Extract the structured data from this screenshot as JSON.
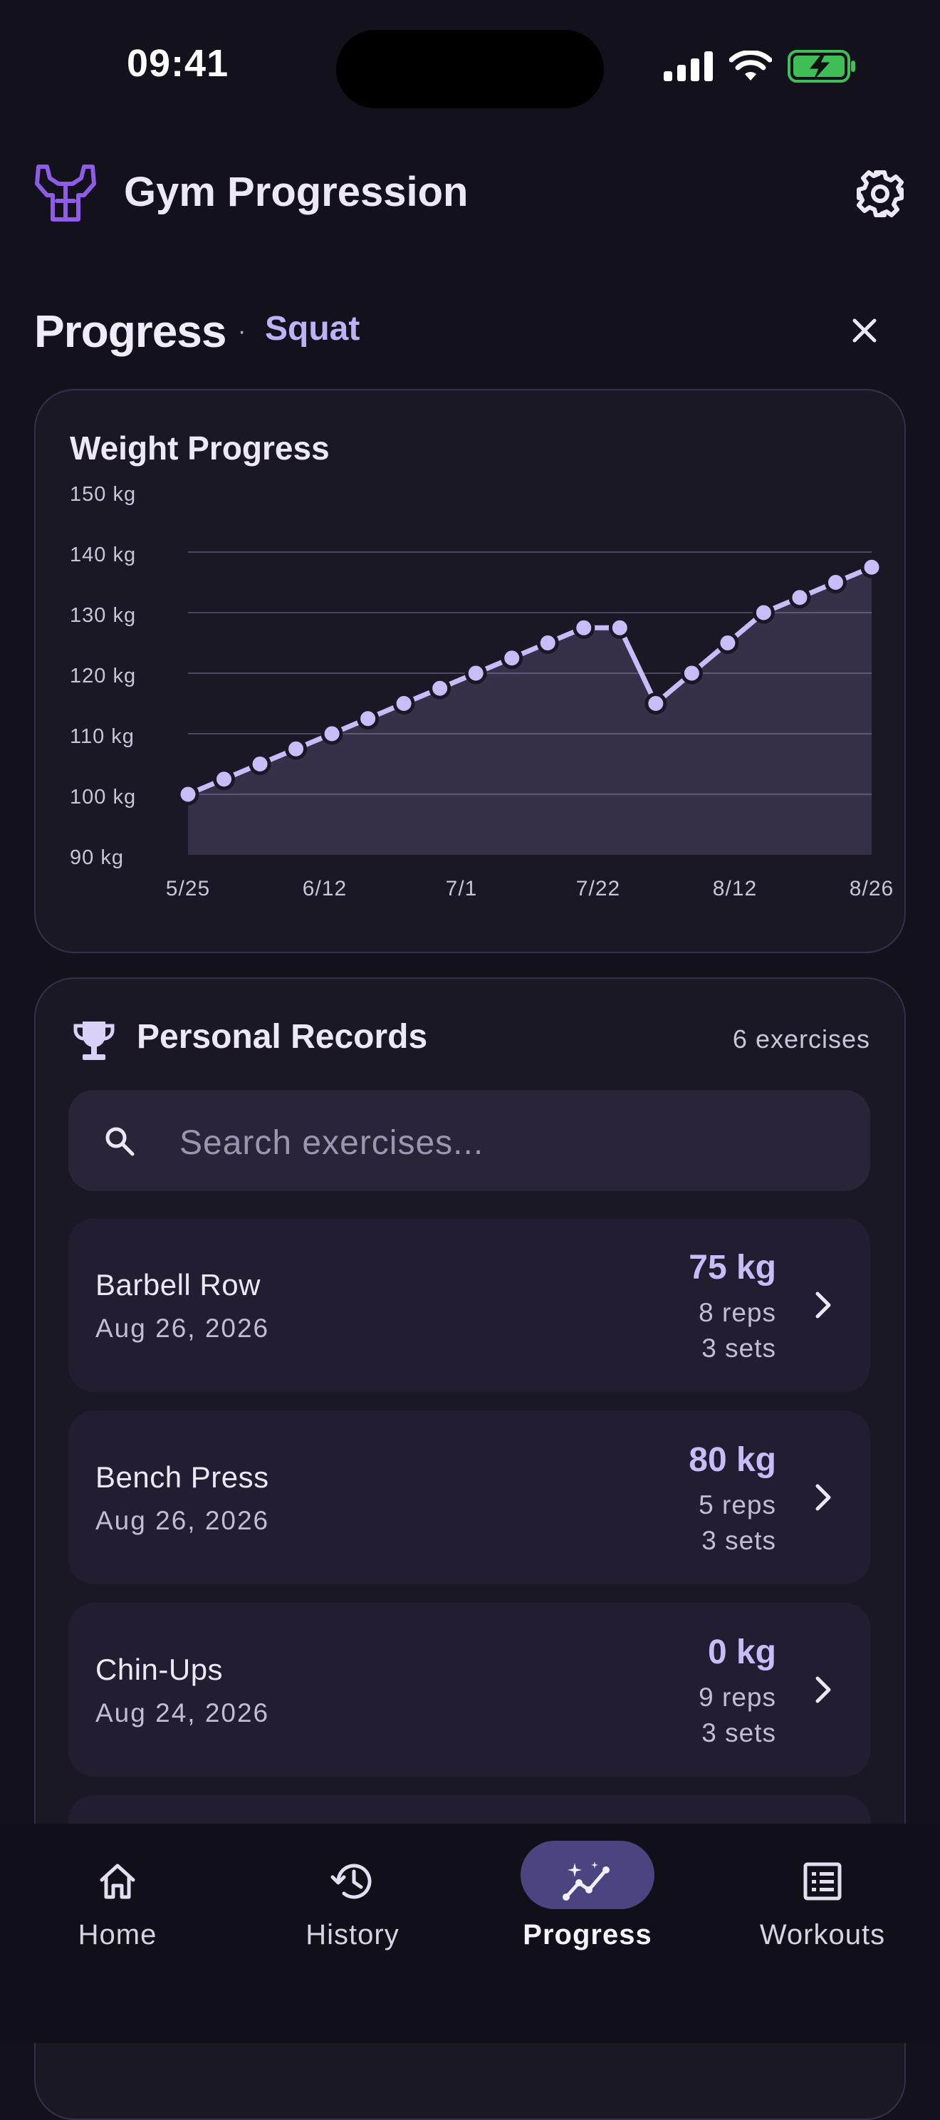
{
  "status_bar": {
    "time": "09:41"
  },
  "app_bar": {
    "title": "Gym Progression",
    "logo_icon": "flexing-arms-icon",
    "settings_icon": "gear-icon"
  },
  "section": {
    "title": "Progress",
    "separator": "·",
    "exercise": "Squat",
    "close_icon": "close-icon"
  },
  "chart_data": {
    "type": "area",
    "title": "Weight Progress",
    "x_tick_labels": [
      "5/25",
      "6/12",
      "7/1",
      "7/22",
      "8/12",
      "8/26"
    ],
    "y_tick_labels": [
      "150 kg",
      "140 kg",
      "130 kg",
      "120 kg",
      "110 kg",
      "100 kg",
      "90 kg"
    ],
    "ylim": [
      90,
      150
    ],
    "grid": true,
    "series": [
      {
        "values": [
          100,
          102.5,
          105,
          107.5,
          110,
          112.5,
          115,
          117.5,
          120,
          122.5,
          125,
          127.5,
          127.5,
          115,
          120,
          125,
          130,
          132.5,
          135,
          137.5
        ]
      }
    ],
    "accent": "#c8bdf8"
  },
  "records": {
    "title": "Personal Records",
    "count": "6 exercises",
    "search_placeholder": "Search exercises...",
    "items": [
      {
        "name": "Barbell Row",
        "date": "Aug 26, 2026",
        "weight": "75 kg",
        "reps": "8 reps",
        "sets": "3 sets"
      },
      {
        "name": "Bench Press",
        "date": "Aug 26, 2026",
        "weight": "80 kg",
        "reps": "5 reps",
        "sets": "3 sets"
      },
      {
        "name": "Chin-Ups",
        "date": "Aug 24, 2026",
        "weight": "0 kg",
        "reps": "9 reps",
        "sets": "3 sets"
      }
    ]
  },
  "nav": {
    "items": [
      {
        "label": "Home",
        "icon": "home-icon"
      },
      {
        "label": "History",
        "icon": "history-icon"
      },
      {
        "label": "Progress",
        "icon": "progress-icon",
        "active": true
      },
      {
        "label": "Workouts",
        "icon": "workouts-list-icon"
      }
    ]
  }
}
